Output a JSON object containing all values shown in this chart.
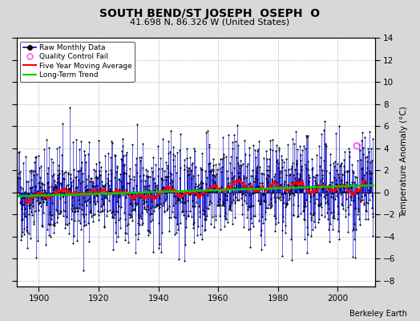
{
  "title": "SOUTH BEND/ST JOSEPH  OSEPH  O",
  "subtitle": "41.698 N, 86.326 W (United States)",
  "ylabel": "Temperature Anomaly (°C)",
  "credit": "Berkeley Earth",
  "year_start": 1893,
  "year_end": 2011,
  "ylim": [
    -8.5,
    14
  ],
  "yticks": [
    -8,
    -6,
    -4,
    -2,
    0,
    2,
    4,
    6,
    8,
    10,
    12,
    14
  ],
  "xticks": [
    1900,
    1920,
    1940,
    1960,
    1980,
    2000
  ],
  "raw_color": "#0000cc",
  "ma_color": "#ff0000",
  "trend_color": "#00cc00",
  "qc_color": "#ff44ff",
  "plot_bg": "#ffffff",
  "fig_bg": "#d8d8d8",
  "seed": 42
}
